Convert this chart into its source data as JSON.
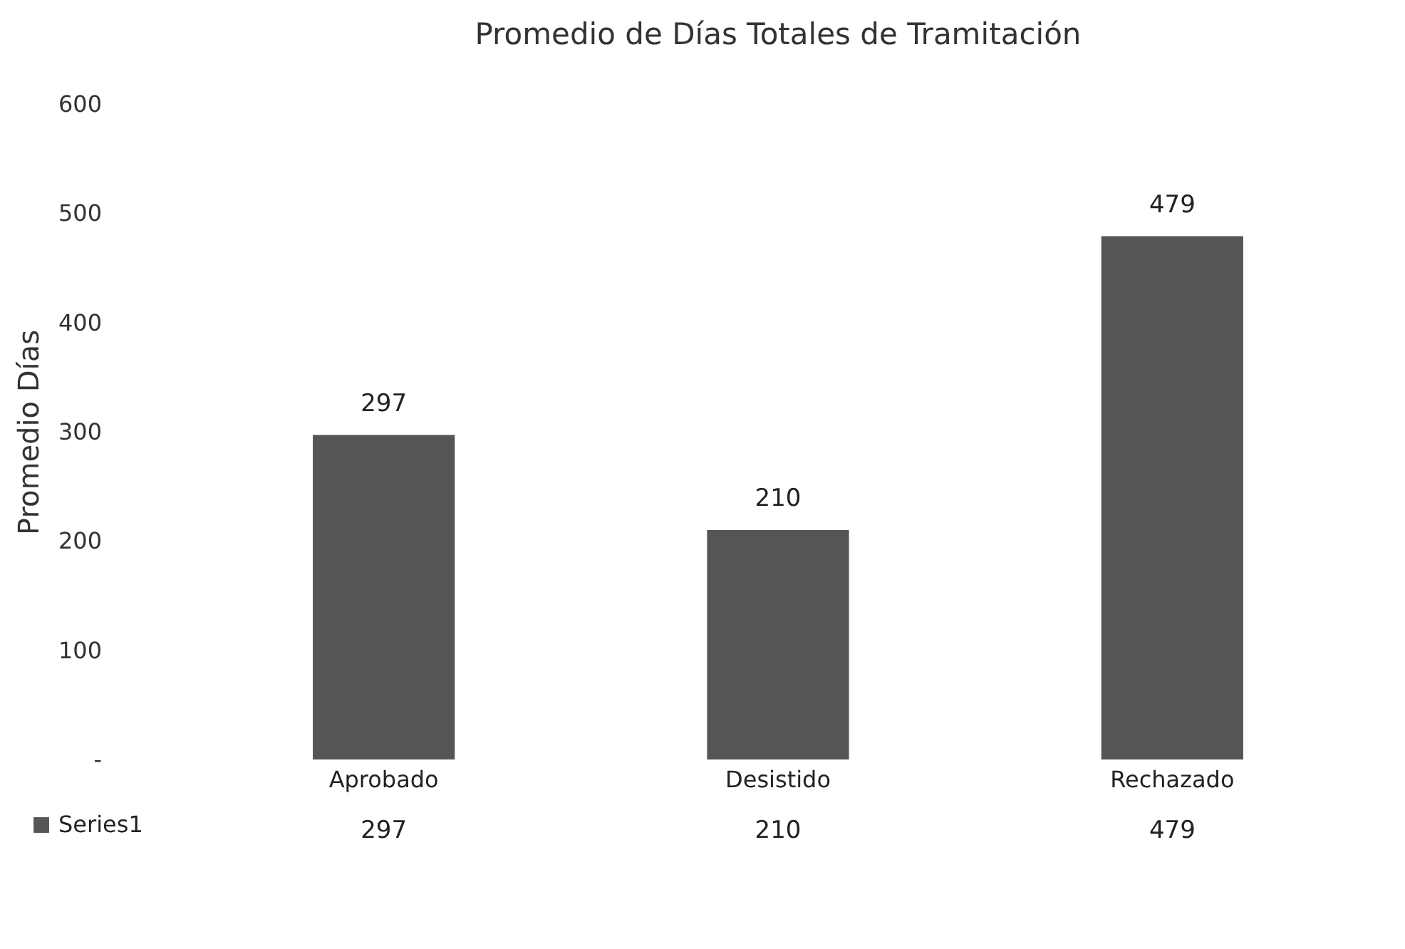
{
  "chart_data": {
    "type": "bar",
    "title": "Promedio de Días Totales de Tramitación",
    "ylabel": "Promedio Días",
    "categories": [
      "Aprobado",
      "Desistido",
      "Rechazado"
    ],
    "series": [
      {
        "name": "Series1",
        "color": "#555555",
        "values": [
          297,
          210,
          479
        ]
      }
    ],
    "ylim": [
      0,
      600
    ],
    "yticks": [
      {
        "value": 0,
        "label": "-"
      },
      100,
      200,
      300,
      400,
      500,
      600
    ],
    "data_labels": true,
    "annotations": [
      "297",
      "210",
      "479"
    ],
    "legend": "bottom left"
  }
}
